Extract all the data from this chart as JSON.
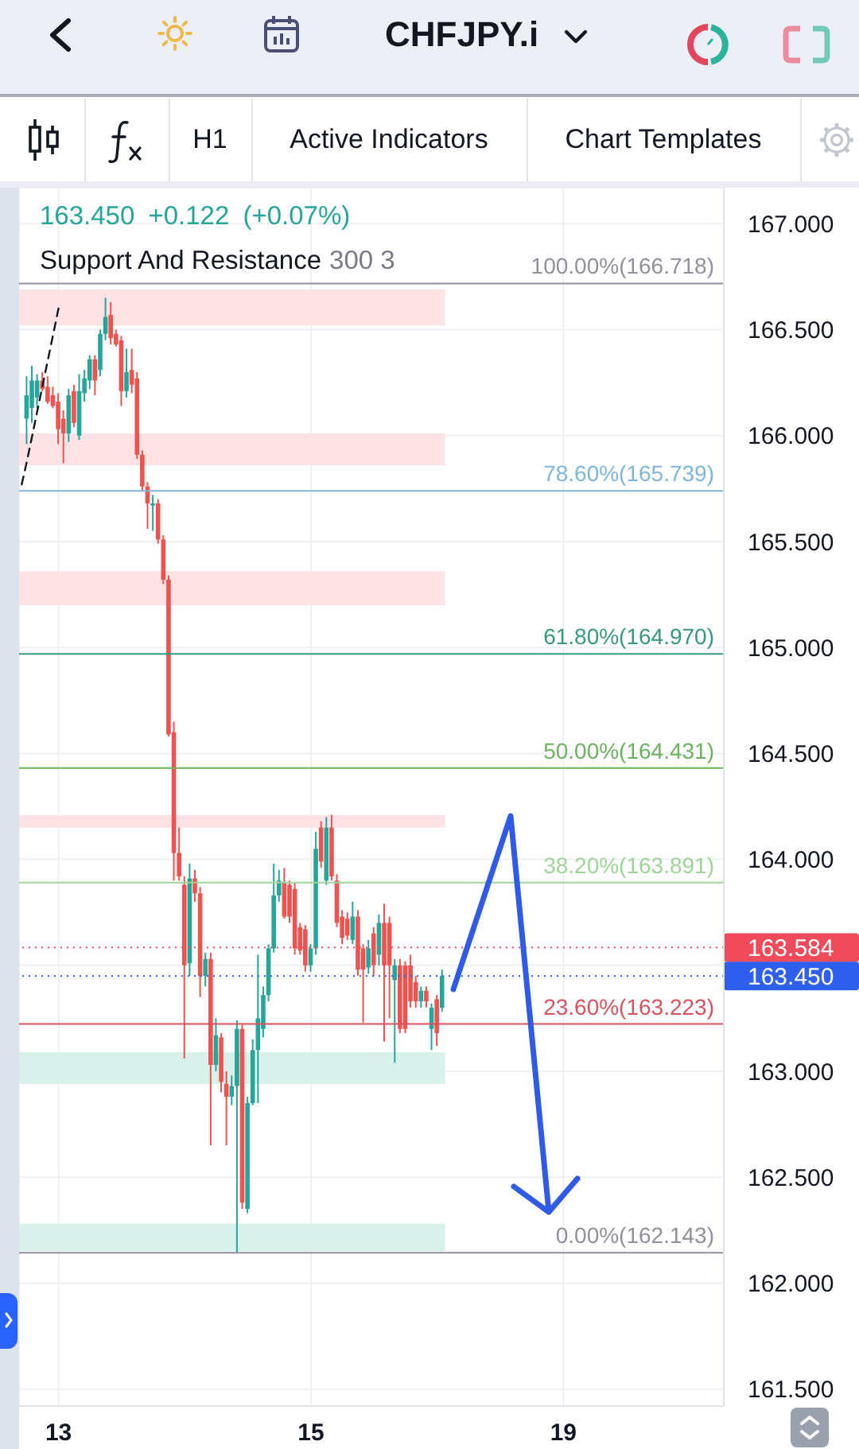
{
  "chart_data": {
    "type": "candlestick",
    "title": "CHFJPY.i",
    "subtitle": "163.450 +0.122 (+0.07%)",
    "annotations": [
      "H1",
      "Active Indicators",
      "Chart Templates",
      "Support And Resistance",
      "300 3"
    ],
    "categories": [
      null,
      null,
      null,
      null,
      null,
      null,
      null,
      "13",
      null,
      null,
      null,
      null,
      null,
      null,
      null,
      null,
      null,
      null,
      null,
      null,
      null,
      null,
      null,
      null,
      null,
      null,
      null,
      null,
      null,
      null,
      null,
      null,
      null,
      null,
      null,
      null,
      null,
      null,
      null,
      null,
      null,
      null,
      null,
      null,
      null,
      null,
      null,
      null,
      null,
      null,
      null,
      null,
      null,
      null,
      null,
      "15",
      null,
      null,
      null,
      null,
      null,
      null,
      null,
      null,
      null,
      null,
      null,
      null,
      null,
      null,
      null,
      null,
      null,
      null,
      null,
      null,
      null,
      null,
      null,
      null,
      null,
      null,
      null,
      null,
      null,
      null,
      null,
      null,
      null,
      null,
      null,
      null,
      null,
      null,
      null,
      null,
      null,
      null,
      null,
      null,
      null,
      null,
      null,
      "19",
      null,
      null,
      null,
      null,
      null,
      null,
      null,
      null,
      null,
      null,
      null,
      null,
      null,
      null,
      null,
      null,
      null,
      null,
      null,
      null,
      null,
      null,
      null,
      null,
      null,
      null,
      null,
      null,
      null,
      null
    ],
    "ohlc": [
      null,
      [
        166.08,
        166.28,
        165.96,
        166.19
      ],
      [
        166.13,
        166.33,
        166.06,
        166.26
      ],
      [
        166.18,
        166.29,
        166.13,
        166.26
      ],
      [
        166.26,
        166.3,
        166.21,
        166.22
      ],
      [
        166.23,
        166.28,
        166.15,
        166.16
      ],
      [
        166.19,
        166.23,
        166.13,
        166.14
      ],
      [
        166.16,
        166.2,
        165.96,
        166.03
      ],
      [
        166.08,
        166.12,
        165.87,
        166.01
      ],
      [
        166.01,
        166.22,
        165.97,
        166.19
      ],
      [
        166.21,
        166.24,
        166.04,
        166.06
      ],
      [
        166.0,
        166.29,
        165.98,
        166.21
      ],
      [
        166.2,
        166.31,
        166.16,
        166.27
      ],
      [
        166.26,
        166.38,
        166.22,
        166.36
      ],
      [
        166.36,
        166.38,
        166.19,
        166.26
      ],
      [
        166.31,
        166.5,
        166.28,
        166.48
      ],
      [
        166.48,
        166.65,
        166.45,
        166.56
      ],
      [
        166.57,
        166.63,
        166.43,
        166.46
      ],
      [
        166.48,
        166.5,
        166.42,
        166.43
      ],
      [
        166.45,
        166.47,
        166.14,
        166.21
      ],
      [
        166.21,
        166.41,
        166.18,
        166.3
      ],
      [
        166.31,
        166.41,
        166.2,
        166.24
      ],
      [
        166.27,
        166.3,
        165.89,
        165.91
      ],
      [
        165.91,
        165.93,
        165.74,
        165.76
      ],
      [
        165.76,
        165.78,
        165.56,
        165.68
      ],
      [
        165.67,
        165.72,
        165.55,
        165.68
      ],
      [
        165.68,
        165.7,
        165.49,
        165.51
      ],
      [
        165.51,
        165.53,
        165.3,
        165.32
      ],
      [
        165.32,
        165.34,
        164.58,
        164.59
      ],
      [
        164.6,
        164.65,
        163.9,
        164.03
      ],
      [
        164.03,
        164.15,
        163.9,
        163.92
      ],
      [
        163.88,
        163.92,
        163.06,
        163.5
      ],
      [
        163.51,
        163.98,
        163.45,
        163.91
      ],
      [
        163.91,
        163.95,
        163.8,
        163.84
      ],
      [
        163.84,
        163.87,
        163.35,
        163.45
      ],
      [
        163.45,
        163.56,
        163.4,
        163.53
      ],
      [
        163.53,
        163.56,
        162.65,
        163.03
      ],
      [
        163.03,
        163.25,
        163.0,
        163.17
      ],
      [
        163.16,
        163.18,
        162.9,
        162.95
      ],
      [
        162.94,
        163.0,
        162.65,
        162.88
      ],
      [
        162.88,
        162.98,
        162.84,
        162.93
      ],
      [
        162.93,
        163.24,
        162.14,
        163.2
      ],
      [
        163.2,
        163.22,
        162.35,
        162.38
      ],
      [
        162.35,
        162.88,
        162.33,
        162.85
      ],
      [
        162.85,
        163.15,
        162.84,
        163.1
      ],
      [
        163.1,
        163.55,
        162.85,
        163.25
      ],
      [
        163.2,
        163.4,
        163.16,
        163.36
      ],
      [
        163.36,
        163.6,
        163.33,
        163.58
      ],
      [
        163.58,
        163.98,
        163.56,
        163.83
      ],
      [
        163.83,
        163.95,
        163.8,
        163.9
      ],
      [
        163.89,
        163.96,
        163.72,
        163.73
      ],
      [
        163.88,
        163.9,
        163.7,
        163.73
      ],
      [
        163.86,
        163.89,
        163.55,
        163.58
      ],
      [
        163.68,
        163.7,
        163.55,
        163.57
      ],
      [
        163.67,
        163.69,
        163.47,
        163.5
      ],
      [
        163.5,
        163.6,
        163.47,
        163.58
      ],
      [
        163.58,
        164.13,
        163.55,
        164.05
      ],
      [
        164.15,
        164.18,
        163.96,
        163.99
      ],
      [
        163.9,
        164.2,
        163.88,
        164.15
      ],
      [
        164.15,
        164.21,
        163.9,
        163.92
      ],
      [
        163.9,
        163.93,
        163.68,
        163.7
      ],
      [
        163.73,
        163.76,
        163.6,
        163.63
      ],
      [
        163.72,
        163.75,
        163.62,
        163.64
      ],
      [
        163.62,
        163.8,
        163.6,
        163.73
      ],
      [
        163.73,
        163.76,
        163.45,
        163.48
      ],
      [
        163.58,
        163.6,
        163.23,
        163.48
      ],
      [
        163.49,
        163.62,
        163.46,
        163.58
      ],
      [
        163.65,
        163.68,
        163.45,
        163.5
      ],
      [
        163.55,
        163.74,
        163.5,
        163.7
      ],
      [
        163.7,
        163.79,
        163.14,
        163.5
      ],
      [
        163.7,
        163.73,
        163.25,
        163.5
      ],
      [
        163.43,
        163.53,
        163.04,
        163.5
      ],
      [
        163.5,
        163.53,
        163.18,
        163.2
      ],
      [
        163.5,
        163.52,
        163.18,
        163.2
      ],
      [
        163.5,
        163.55,
        163.3,
        163.33
      ],
      [
        163.42,
        163.45,
        163.3,
        163.33
      ],
      [
        163.33,
        163.4,
        163.3,
        163.38
      ],
      [
        163.38,
        163.4,
        163.3,
        163.33
      ],
      [
        163.2,
        163.32,
        163.1,
        163.3
      ],
      [
        163.34,
        163.36,
        163.12,
        163.18
      ],
      [
        163.3,
        163.48,
        163.28,
        163.45
      ],
      null,
      null,
      null,
      null,
      null,
      null,
      null,
      null,
      null,
      null,
      null,
      null,
      null,
      null,
      null,
      null,
      null,
      null,
      null,
      null,
      null,
      null,
      null,
      null,
      null,
      null,
      null,
      null,
      null,
      null,
      null,
      null,
      null,
      null,
      null,
      null,
      null,
      null,
      null,
      null,
      null,
      null,
      null,
      null,
      null,
      null,
      null,
      null,
      null,
      null,
      null,
      null,
      null
    ],
    "colors": [
      null,
      "#26a69a",
      "#26a69a",
      "#26a69a",
      "#ef5350",
      "#ef5350",
      "#ef5350",
      "#ef5350",
      "#ef5350",
      "#26a69a",
      "#ef5350",
      "#26a69a",
      "#26a69a",
      "#26a69a",
      "#ef5350",
      "#26a69a",
      "#26a69a",
      "#ef5350",
      "#ef5350",
      "#ef5350",
      "#26a69a",
      "#ef5350",
      "#ef5350",
      "#ef5350",
      "#ef5350",
      "#26a69a",
      "#ef5350",
      "#ef5350",
      "#ef5350",
      "#ef5350",
      "#ef5350",
      "#ef5350",
      "#26a69a",
      "#ef5350",
      "#ef5350",
      "#26a69a",
      "#ef5350",
      "#26a69a",
      "#ef5350",
      "#ef5350",
      "#26a69a",
      "#26a69a",
      "#ef5350",
      "#26a69a",
      "#26a69a",
      "#26a69a",
      "#26a69a",
      "#26a69a",
      "#26a69a",
      "#26a69a",
      "#ef5350",
      "#ef5350",
      "#ef5350",
      "#ef5350",
      "#ef5350",
      "#26a69a",
      "#26a69a",
      "#ef5350",
      "#26a69a",
      "#ef5350",
      "#ef5350",
      "#ef5350",
      "#ef5350",
      "#26a69a",
      "#ef5350",
      "#ef5350",
      "#26a69a",
      "#ef5350",
      "#26a69a",
      "#ef5350",
      "#ef5350",
      "#26a69a",
      "#ef5350",
      "#ef5350",
      "#ef5350",
      "#ef5350",
      "#26a69a",
      "#ef5350",
      "#26a69a",
      "#ef5350",
      "#26a69a",
      null,
      null,
      null,
      null,
      null,
      null,
      null,
      null,
      null,
      null,
      null,
      null,
      null,
      null,
      null,
      null,
      null,
      null,
      null,
      null,
      null,
      null,
      null,
      null,
      null,
      null,
      null,
      null,
      null,
      null,
      null,
      null,
      null,
      null,
      null,
      null,
      null,
      null,
      null,
      null,
      null,
      null,
      null,
      null,
      null,
      null,
      null,
      null,
      null,
      null,
      null,
      null,
      null
    ],
    "series": [
      {
        "type": "line",
        "color": "#131722",
        "line_style": "dashed",
        "values": [
          165.77,
          165.88,
          166.0,
          166.12,
          166.24,
          166.36,
          166.48,
          166.6,
          null,
          null,
          null,
          null,
          null,
          null,
          null,
          null,
          null,
          null,
          null,
          null,
          null,
          null,
          null,
          null,
          null,
          null,
          null,
          null,
          null,
          null,
          null,
          null,
          null,
          null,
          null,
          null,
          null,
          null,
          null,
          null,
          null,
          null,
          null,
          null,
          null,
          null,
          null,
          null,
          null,
          null,
          null,
          null,
          null,
          null,
          null,
          null,
          null,
          null,
          null,
          null,
          null,
          null,
          null,
          null,
          null,
          null,
          null,
          null,
          null,
          null,
          null,
          null,
          null,
          null,
          null,
          null,
          null,
          null,
          null,
          null,
          null,
          null,
          null,
          null,
          null,
          null,
          null,
          null,
          null,
          null,
          null,
          null,
          null,
          null,
          null,
          null,
          null,
          null,
          null,
          null,
          null,
          null,
          null,
          null,
          null,
          null,
          null,
          null,
          null,
          null,
          null,
          null,
          null,
          null,
          null,
          null,
          null,
          null,
          null,
          null,
          null,
          null,
          null,
          null,
          null,
          null,
          null,
          null,
          null,
          null,
          null,
          null,
          null,
          null
        ]
      }
    ],
    "ylim": [
      161.42,
      167.17
    ],
    "yticks": [
      {
        "value": 161.5,
        "label": "161.500"
      },
      {
        "value": 162,
        "label": "162.000"
      },
      {
        "value": 162.5,
        "label": "162.500"
      },
      {
        "value": 163,
        "label": "163.000"
      },
      {
        "value": 163.5,
        "label": null
      },
      {
        "value": 164,
        "label": "164.000"
      },
      {
        "value": 164.5,
        "label": "164.500"
      },
      {
        "value": 165,
        "label": "165.000"
      },
      {
        "value": 165.5,
        "label": "165.500"
      },
      {
        "value": 166,
        "label": "166.000"
      },
      {
        "value": 166.5,
        "label": "166.500"
      },
      {
        "value": 167,
        "label": "167.000"
      }
    ],
    "ref_lines": [
      {
        "axis": "y",
        "value": 166.718,
        "label": "100.00%(166.718)",
        "color": "#8f929b"
      },
      {
        "axis": "y",
        "value": 165.739,
        "label": "78.60%(165.739)",
        "color": "#7db6da"
      },
      {
        "axis": "y",
        "value": 164.97,
        "label": "61.80%(164.970)",
        "color": "#36997e"
      },
      {
        "axis": "y",
        "value": 164.431,
        "label": "50.00%(164.431)",
        "color": "#6db35f"
      },
      {
        "axis": "y",
        "value": 163.891,
        "label": "38.20%(163.891)",
        "color": "#9fd498"
      },
      {
        "axis": "y",
        "value": 163.584,
        "label": "163.584",
        "color": "#f04b5a",
        "line_style": "dotted"
      },
      {
        "axis": "y",
        "value": 163.45,
        "label": "163.450",
        "color": "#2f5fee",
        "line_style": "dotted"
      },
      {
        "axis": "y",
        "value": 163.223,
        "label": "23.60%(163.223)",
        "color": "#d9535e"
      },
      {
        "axis": "y",
        "value": 162.143,
        "label": "0.00%(162.143)",
        "color": "#8f929b"
      }
    ],
    "bands": [
      {
        "axis": "y",
        "from": 166.52,
        "to": 166.69,
        "color": "#fde3e5"
      },
      {
        "axis": "y",
        "from": 165.86,
        "to": 166.01,
        "color": "#fde3e5"
      },
      {
        "axis": "y",
        "from": 165.2,
        "to": 165.36,
        "color": "#fde3e5"
      },
      {
        "axis": "y",
        "from": 164.15,
        "to": 164.21,
        "color": "#fde3e5"
      },
      {
        "axis": "y",
        "from": 162.94,
        "to": 163.09,
        "color": "#d9f1eb"
      },
      {
        "axis": "y",
        "from": 162.15,
        "to": 162.28,
        "color": "#d9f1eb"
      }
    ],
    "grid": true
  }
}
